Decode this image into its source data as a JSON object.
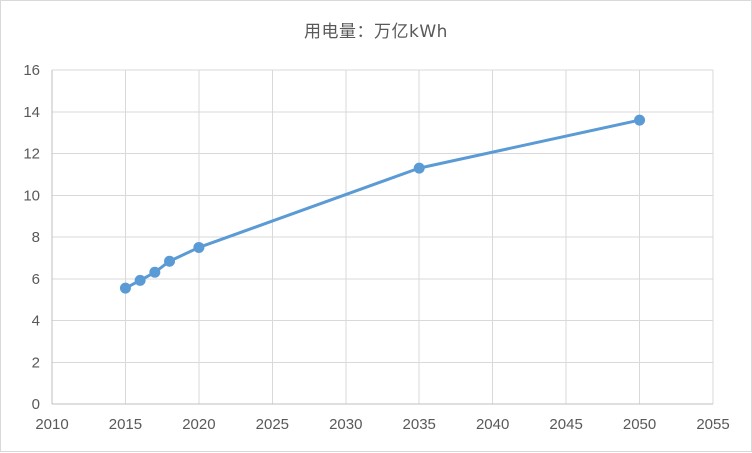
{
  "chart_data": {
    "type": "line",
    "title": "用电量：万亿kWh",
    "x": [
      2015,
      2016,
      2017,
      2018,
      2020,
      2035,
      2050
    ],
    "y": [
      5.55,
      5.92,
      6.31,
      6.84,
      7.5,
      11.3,
      13.6
    ],
    "xlim": [
      2010,
      2055
    ],
    "ylim": [
      0,
      16
    ],
    "x_ticks": [
      2010,
      2015,
      2020,
      2025,
      2030,
      2035,
      2040,
      2045,
      2050,
      2055
    ],
    "y_ticks": [
      0,
      2,
      4,
      6,
      8,
      10,
      12,
      14,
      16
    ],
    "xlabel": "",
    "ylabel": "",
    "grid": true,
    "legend_position": "none",
    "marker": "circle",
    "colors": {
      "series": "#5B9BD5",
      "gridline": "#D9D9D9",
      "axis_line": "#BFBFBF",
      "tick_text": "#595959",
      "title_text": "#595959",
      "background": "#FFFFFF",
      "chart_border": "#D9D9D9"
    }
  }
}
